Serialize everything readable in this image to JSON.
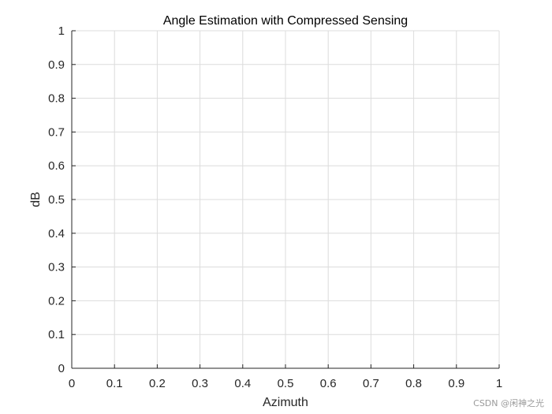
{
  "chart_data": {
    "type": "line",
    "title": "Angle Estimation with Compressed Sensing",
    "xlabel": "Azimuth",
    "ylabel": "dB",
    "xlim": [
      0,
      1
    ],
    "ylim": [
      0,
      1
    ],
    "xticks": [
      "0",
      "0.1",
      "0.2",
      "0.3",
      "0.4",
      "0.5",
      "0.6",
      "0.7",
      "0.8",
      "0.9",
      "1"
    ],
    "yticks": [
      "0",
      "0.1",
      "0.2",
      "0.3",
      "0.4",
      "0.5",
      "0.6",
      "0.7",
      "0.8",
      "0.9",
      "1"
    ],
    "grid": true,
    "series": []
  },
  "watermark": "CSDN @闲神之光",
  "colors": {
    "grid": "#dcdcdc",
    "axis": "#262626",
    "text": "#262626"
  }
}
